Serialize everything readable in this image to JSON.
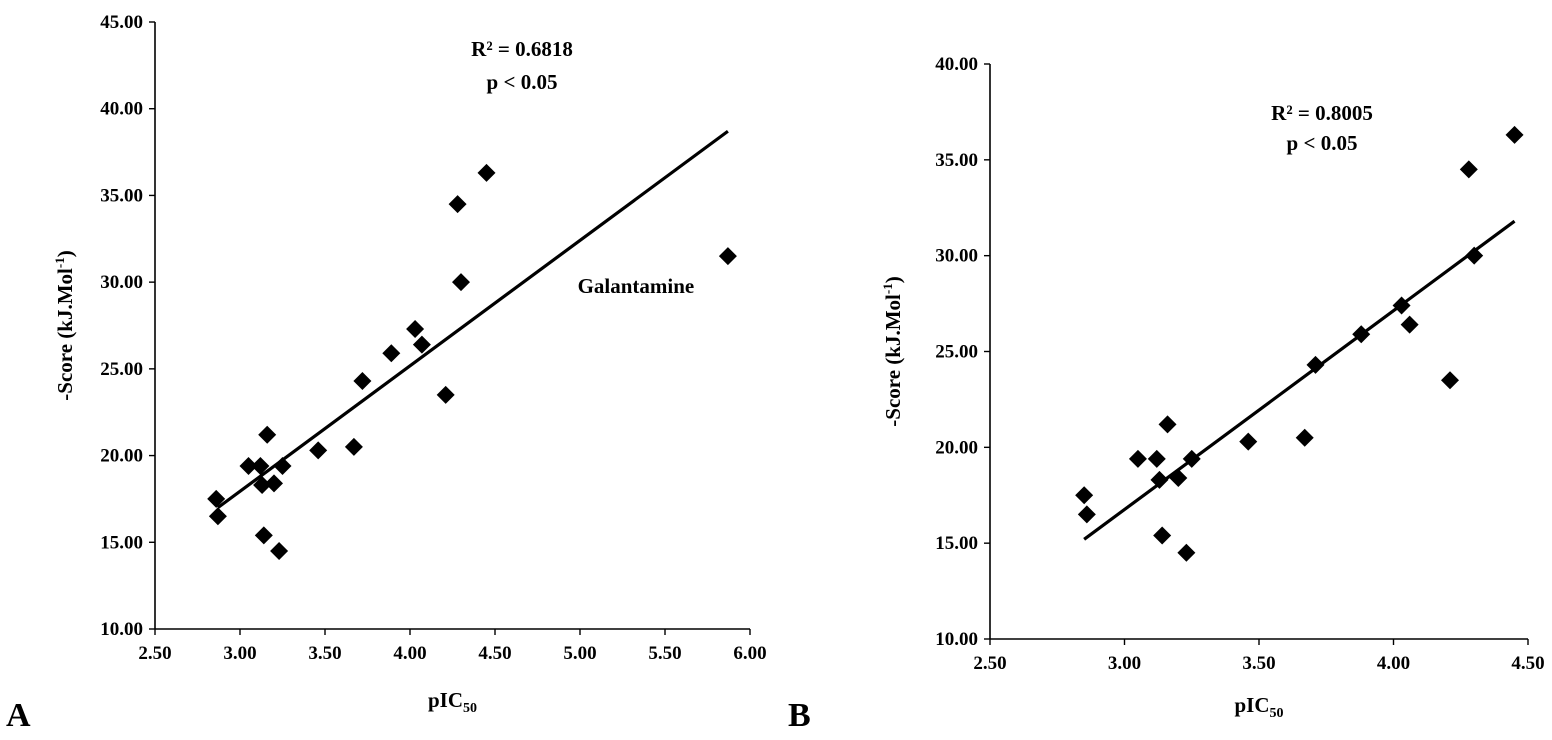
{
  "chart_data": [
    {
      "type": "scatter",
      "panel_label": "A",
      "xlabel": {
        "main": "pIC",
        "sub": "50"
      },
      "ylabel": {
        "main": "-Score (kJ.Mol",
        "sup": "-1",
        "end": ")"
      },
      "xlim": [
        2.5,
        6.0
      ],
      "ylim": [
        10.0,
        45.0
      ],
      "xticks": [
        2.5,
        3.0,
        3.5,
        4.0,
        4.5,
        5.0,
        5.5,
        6.0
      ],
      "xtick_labels": [
        "2.50",
        "3.00",
        "3.50",
        "4.00",
        "4.50",
        "5.00",
        "5.50",
        "6.00"
      ],
      "yticks": [
        10,
        15,
        20,
        25,
        30,
        35,
        40,
        45
      ],
      "ytick_labels": [
        "10.00",
        "15.00",
        "20.00",
        "25.00",
        "30.00",
        "35.00",
        "40.00",
        "45.00"
      ],
      "grid": false,
      "marker": "diamond",
      "color": "#000000",
      "annotations": [
        "R² = 0.6818",
        "p < 0.05"
      ],
      "point_labels": [
        {
          "text": "Galantamine",
          "x": 5.87,
          "y": 31.5
        }
      ],
      "trendline": {
        "x": [
          2.87,
          5.87
        ],
        "y": [
          17.0,
          38.7
        ]
      },
      "points": [
        {
          "x": 2.86,
          "y": 17.5
        },
        {
          "x": 2.87,
          "y": 16.5
        },
        {
          "x": 3.05,
          "y": 19.4
        },
        {
          "x": 3.12,
          "y": 19.4
        },
        {
          "x": 3.13,
          "y": 18.3
        },
        {
          "x": 3.14,
          "y": 15.4
        },
        {
          "x": 3.16,
          "y": 21.2
        },
        {
          "x": 3.2,
          "y": 18.4
        },
        {
          "x": 3.23,
          "y": 14.5
        },
        {
          "x": 3.25,
          "y": 19.4
        },
        {
          "x": 3.46,
          "y": 20.3
        },
        {
          "x": 3.67,
          "y": 20.5
        },
        {
          "x": 3.72,
          "y": 24.3
        },
        {
          "x": 3.89,
          "y": 25.9
        },
        {
          "x": 4.03,
          "y": 27.3
        },
        {
          "x": 4.07,
          "y": 26.4
        },
        {
          "x": 4.21,
          "y": 23.5
        },
        {
          "x": 4.28,
          "y": 34.5
        },
        {
          "x": 4.3,
          "y": 30.0
        },
        {
          "x": 4.45,
          "y": 36.3
        },
        {
          "x": 5.87,
          "y": 31.5
        }
      ]
    },
    {
      "type": "scatter",
      "panel_label": "B",
      "xlabel": {
        "main": "pIC",
        "sub": "50"
      },
      "ylabel": {
        "main": "-Score (kJ.Mol",
        "sup": "-1",
        "end": ")"
      },
      "xlim": [
        2.5,
        4.5
      ],
      "ylim": [
        10.0,
        40.0
      ],
      "xticks": [
        2.5,
        3.0,
        3.5,
        4.0,
        4.5
      ],
      "xtick_labels": [
        "2.50",
        "3.00",
        "3.50",
        "4.00",
        "4.50"
      ],
      "yticks": [
        10,
        15,
        20,
        25,
        30,
        35,
        40
      ],
      "ytick_labels": [
        "10.00",
        "15.00",
        "20.00",
        "25.00",
        "30.00",
        "35.00",
        "40.00"
      ],
      "grid": false,
      "marker": "diamond",
      "color": "#000000",
      "annotations": [
        "R² = 0.8005",
        "p < 0.05"
      ],
      "point_labels": [],
      "trendline": {
        "x": [
          2.85,
          4.45
        ],
        "y": [
          15.2,
          31.8
        ]
      },
      "points": [
        {
          "x": 2.85,
          "y": 17.5
        },
        {
          "x": 2.86,
          "y": 16.5
        },
        {
          "x": 3.05,
          "y": 19.4
        },
        {
          "x": 3.12,
          "y": 19.4
        },
        {
          "x": 3.13,
          "y": 18.3
        },
        {
          "x": 3.14,
          "y": 15.4
        },
        {
          "x": 3.16,
          "y": 21.2
        },
        {
          "x": 3.2,
          "y": 18.4
        },
        {
          "x": 3.23,
          "y": 14.5
        },
        {
          "x": 3.25,
          "y": 19.4
        },
        {
          "x": 3.46,
          "y": 20.3
        },
        {
          "x": 3.67,
          "y": 20.5
        },
        {
          "x": 3.71,
          "y": 24.3
        },
        {
          "x": 3.88,
          "y": 25.9
        },
        {
          "x": 4.03,
          "y": 27.4
        },
        {
          "x": 4.06,
          "y": 26.4
        },
        {
          "x": 4.21,
          "y": 23.5
        },
        {
          "x": 4.28,
          "y": 34.5
        },
        {
          "x": 4.3,
          "y": 30.0
        },
        {
          "x": 4.45,
          "y": 36.3
        }
      ]
    }
  ]
}
